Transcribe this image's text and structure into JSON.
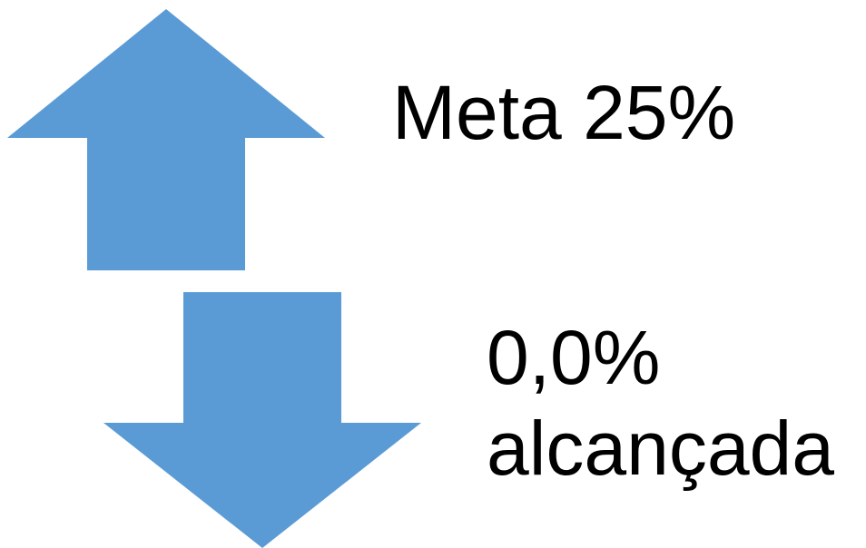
{
  "colors": {
    "arrow": "#5B9BD5",
    "text": "#000000",
    "background": "#FFFFFF"
  },
  "icons": {
    "up": "arrow-up-icon",
    "down": "arrow-down-icon"
  },
  "goal": {
    "text": "Meta 25%"
  },
  "result": {
    "value": "0,0%",
    "status": "alcançada"
  }
}
